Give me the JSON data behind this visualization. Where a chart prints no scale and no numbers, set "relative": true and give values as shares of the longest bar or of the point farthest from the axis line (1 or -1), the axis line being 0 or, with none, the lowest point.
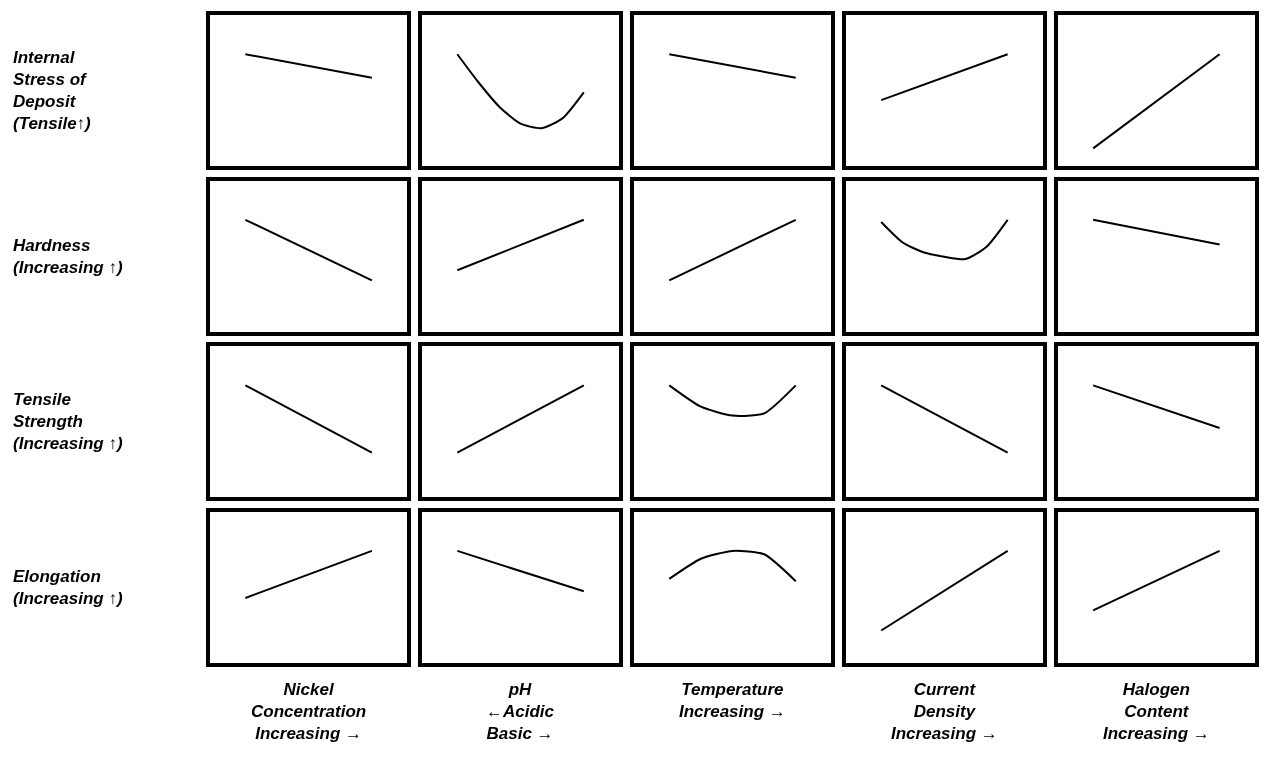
{
  "chart_data": [
    {
      "type": "line",
      "relative": true,
      "ylabel": "Internal\nStress of\nDeposit\n(Tensile↑)",
      "categories": [
        null,
        null
      ],
      "values": [
        1,
        0.79
      ],
      "color": "#000000"
    },
    {
      "type": "line",
      "relative": true,
      "categories": [
        null,
        null,
        null,
        null,
        null,
        null,
        null
      ],
      "values": [
        1,
        0.75,
        0.53,
        0.38,
        0.34,
        0.43,
        0.66
      ],
      "color": "#000000"
    },
    {
      "type": "line",
      "relative": true,
      "categories": [
        null,
        null
      ],
      "values": [
        1,
        0.79
      ],
      "color": "#000000"
    },
    {
      "type": "line",
      "relative": true,
      "categories": [
        null,
        null
      ],
      "values": [
        0.59,
        1
      ],
      "color": "#000000"
    },
    {
      "type": "line",
      "relative": true,
      "categories": [
        null,
        null
      ],
      "values": [
        0.16,
        1
      ],
      "color": "#000000"
    },
    {
      "type": "line",
      "relative": true,
      "ylabel": "Hardness\n(Increasing ↑)",
      "categories": [
        null,
        null
      ],
      "values": [
        1,
        0.46
      ],
      "color": "#000000"
    },
    {
      "type": "line",
      "relative": true,
      "categories": [
        null,
        null
      ],
      "values": [
        0.55,
        1
      ],
      "color": "#000000"
    },
    {
      "type": "line",
      "relative": true,
      "categories": [
        null,
        null
      ],
      "values": [
        0.46,
        1
      ],
      "color": "#000000"
    },
    {
      "type": "line",
      "relative": true,
      "categories": [
        null,
        null,
        null,
        null,
        null,
        null,
        null
      ],
      "values": [
        0.98,
        0.8,
        0.71,
        0.67,
        0.65,
        0.76,
        1
      ],
      "color": "#000000"
    },
    {
      "type": "line",
      "relative": true,
      "categories": [
        null,
        null
      ],
      "values": [
        1,
        0.78
      ],
      "color": "#000000"
    },
    {
      "type": "line",
      "relative": true,
      "ylabel": "Tensile\nStrength\n(Increasing ↑)",
      "categories": [
        null,
        null
      ],
      "values": [
        1,
        0.4
      ],
      "color": "#000000"
    },
    {
      "type": "line",
      "relative": true,
      "categories": [
        null,
        null
      ],
      "values": [
        0.4,
        1
      ],
      "color": "#000000"
    },
    {
      "type": "line",
      "relative": true,
      "categories": [
        null,
        null,
        null,
        null,
        null
      ],
      "values": [
        1,
        0.81,
        0.73,
        0.75,
        1
      ],
      "color": "#000000"
    },
    {
      "type": "line",
      "relative": true,
      "categories": [
        null,
        null
      ],
      "values": [
        1,
        0.4
      ],
      "color": "#000000"
    },
    {
      "type": "line",
      "relative": true,
      "categories": [
        null,
        null
      ],
      "values": [
        1,
        0.62
      ],
      "color": "#000000"
    },
    {
      "type": "line",
      "relative": true,
      "ylabel": "Elongation\n(Increasing ↑)",
      "xlabel": "Nickel\nConcentration\nIncreasing →",
      "categories": [
        null,
        null
      ],
      "values": [
        0.58,
        1
      ],
      "color": "#000000"
    },
    {
      "type": "line",
      "relative": true,
      "xlabel": "pH\n←Acidic\nBasic →",
      "categories": [
        null,
        null
      ],
      "values": [
        1,
        0.64
      ],
      "color": "#000000"
    },
    {
      "type": "line",
      "relative": true,
      "xlabel": "Temperature\nIncreasing →",
      "categories": [
        null,
        null,
        null,
        null,
        null
      ],
      "values": [
        0.75,
        0.93,
        1,
        0.97,
        0.73
      ],
      "color": "#000000"
    },
    {
      "type": "line",
      "relative": true,
      "xlabel": "Current\nDensity\nIncreasing →",
      "categories": [
        null,
        null
      ],
      "values": [
        0.29,
        1
      ],
      "color": "#000000"
    },
    {
      "type": "line",
      "relative": true,
      "xlabel": "Halogen\nContent\nIncreasing →",
      "categories": [
        null,
        null
      ],
      "values": [
        0.47,
        1
      ],
      "color": "#000000"
    }
  ]
}
